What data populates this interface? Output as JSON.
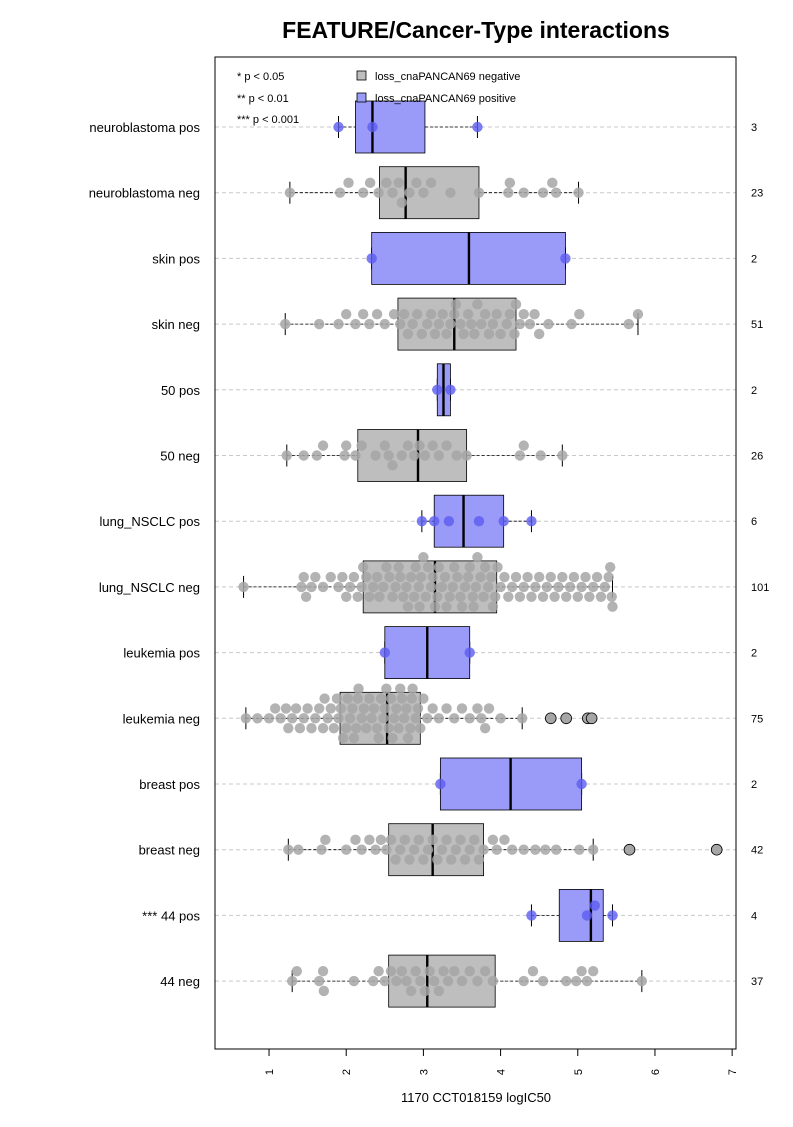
{
  "chart_data": {
    "type": "box",
    "title": "FEATURE/Cancer-Type interactions",
    "xlabel": "1170 CCT018159 logIC50",
    "xlim": [
      0.3,
      7.05
    ],
    "x_ticks": [
      1,
      2,
      3,
      4,
      5,
      6,
      7
    ],
    "x_tick_labels": [
      "1",
      "2",
      "3",
      "4",
      "5",
      "6",
      "7"
    ],
    "grid": "horizontal dashed",
    "legend": {
      "position": "top-left",
      "significance": [
        "* p < 0.05",
        "** p < 0.01",
        "*** p < 0.001"
      ],
      "entries": [
        {
          "label": "loss_cnaPANCAN69 negative",
          "color": "#bebebe"
        },
        {
          "label": "loss_cnaPANCAN69 positive",
          "color": "#9a9af8"
        }
      ]
    },
    "colors": {
      "negative_box": "#bebebe",
      "positive_box": "#9a9af8",
      "negative_point": "#a6a6a6",
      "positive_point": "#5b5bf0"
    },
    "groups": [
      {
        "label": "neuroblastoma pos",
        "n": "3",
        "status": "positive",
        "whisker_low": 1.9,
        "q1": 2.12,
        "median": 2.34,
        "q3": 3.02,
        "whisker_high": 3.7,
        "points": [
          1.9,
          2.34,
          3.7
        ],
        "outliers": []
      },
      {
        "label": "neuroblastoma neg",
        "n": "23",
        "status": "negative",
        "whisker_low": 1.27,
        "q1": 2.43,
        "median": 2.77,
        "q3": 3.72,
        "whisker_high": 5.01,
        "points": [
          1.27,
          1.92,
          2.03,
          2.22,
          2.31,
          2.42,
          2.52,
          2.6,
          2.68,
          2.72,
          2.82,
          2.91,
          3.0,
          3.1,
          3.35,
          3.72,
          4.1,
          4.12,
          4.3,
          4.55,
          4.67,
          4.72,
          5.01
        ],
        "outliers": []
      },
      {
        "label": "skin pos",
        "n": "2",
        "status": "positive",
        "whisker_low": 2.33,
        "q1": 2.33,
        "median": 3.59,
        "q3": 4.84,
        "whisker_high": 4.84,
        "points": [
          2.33,
          4.84
        ],
        "outliers": []
      },
      {
        "label": "skin neg",
        "n": "51",
        "status": "negative",
        "whisker_low": 1.21,
        "q1": 2.67,
        "median": 3.4,
        "q3": 4.2,
        "whisker_high": 5.78,
        "points": [
          1.21,
          1.65,
          1.9,
          2.0,
          2.12,
          2.22,
          2.3,
          2.4,
          2.5,
          2.62,
          2.7,
          2.75,
          2.8,
          2.86,
          2.92,
          2.98,
          3.05,
          3.1,
          3.15,
          3.2,
          3.25,
          3.3,
          3.35,
          3.4,
          3.42,
          3.48,
          3.52,
          3.58,
          3.62,
          3.66,
          3.7,
          3.75,
          3.8,
          3.85,
          3.9,
          3.95,
          4.0,
          4.08,
          4.12,
          4.18,
          4.2,
          4.25,
          4.3,
          4.38,
          4.44,
          4.5,
          4.62,
          4.92,
          5.02,
          5.66,
          5.78
        ],
        "outliers": []
      },
      {
        "label": "50 pos",
        "n": "2",
        "status": "positive",
        "whisker_low": 3.18,
        "q1": 3.18,
        "median": 3.26,
        "q3": 3.35,
        "whisker_high": 3.35,
        "points": [
          3.18,
          3.35
        ],
        "outliers": []
      },
      {
        "label": "50 neg",
        "n": "26",
        "status": "negative",
        "whisker_low": 1.23,
        "q1": 2.15,
        "median": 2.93,
        "q3": 3.56,
        "whisker_high": 4.8,
        "points": [
          1.23,
          1.45,
          1.62,
          1.7,
          1.98,
          2.0,
          2.12,
          2.2,
          2.38,
          2.5,
          2.55,
          2.6,
          2.72,
          2.8,
          2.88,
          2.95,
          3.02,
          3.12,
          3.2,
          3.3,
          3.43,
          3.56,
          4.25,
          4.3,
          4.52,
          4.8
        ],
        "outliers": []
      },
      {
        "label": "lung_NSCLC pos",
        "n": "6",
        "status": "positive",
        "whisker_low": 2.98,
        "q1": 3.14,
        "median": 3.52,
        "q3": 4.04,
        "whisker_high": 4.4,
        "points": [
          2.98,
          3.14,
          3.33,
          3.72,
          4.04,
          4.4
        ],
        "outliers": []
      },
      {
        "label": "lung_NSCLC neg",
        "n": "101",
        "status": "negative",
        "whisker_low": 0.67,
        "q1": 2.22,
        "median": 3.15,
        "q3": 3.95,
        "whisker_high": 5.45,
        "points": [
          0.67,
          1.42,
          1.45,
          1.48,
          1.6,
          1.7,
          1.8,
          1.9,
          1.95,
          2.0,
          2.05,
          2.1,
          2.15,
          2.2,
          2.22,
          2.26,
          2.3,
          2.35,
          2.4,
          2.43,
          2.48,
          2.52,
          2.56,
          2.6,
          2.64,
          2.68,
          2.7,
          2.74,
          2.78,
          2.8,
          2.84,
          2.88,
          2.9,
          2.94,
          2.97,
          3.0,
          3.03,
          3.06,
          3.1,
          3.12,
          3.15,
          3.18,
          3.2,
          3.24,
          3.28,
          3.3,
          3.34,
          3.38,
          3.4,
          3.44,
          3.48,
          3.5,
          3.54,
          3.58,
          3.6,
          3.64,
          3.68,
          3.7,
          3.74,
          3.78,
          3.8,
          3.84,
          3.88,
          3.9,
          3.93,
          3.96,
          4.0,
          4.05,
          4.1,
          4.15,
          4.2,
          4.25,
          4.3,
          4.35,
          4.4,
          4.45,
          4.5,
          4.55,
          4.6,
          4.65,
          4.7,
          4.75,
          4.8,
          4.85,
          4.9,
          4.95,
          5.0,
          5.05,
          5.1,
          5.15,
          5.2,
          5.25,
          5.3,
          5.35,
          5.4,
          5.42,
          5.44,
          5.45,
          1.55,
          2.95,
          3.65
        ],
        "outliers": []
      },
      {
        "label": "leukemia pos",
        "n": "2",
        "status": "positive",
        "whisker_low": 2.5,
        "q1": 2.5,
        "median": 3.05,
        "q3": 3.6,
        "whisker_high": 3.6,
        "points": [
          2.5,
          3.6
        ],
        "outliers": []
      },
      {
        "label": "leukemia neg",
        "n": "75",
        "status": "negative",
        "whisker_low": 0.7,
        "q1": 1.92,
        "median": 2.53,
        "q3": 2.96,
        "whisker_high": 4.28,
        "points": [
          0.7,
          0.85,
          1.0,
          1.08,
          1.15,
          1.22,
          1.3,
          1.35,
          1.4,
          1.45,
          1.5,
          1.55,
          1.6,
          1.65,
          1.7,
          1.72,
          1.76,
          1.8,
          1.84,
          1.88,
          1.9,
          1.93,
          1.96,
          2.0,
          2.02,
          2.05,
          2.08,
          2.1,
          2.13,
          2.16,
          2.2,
          2.23,
          2.26,
          2.3,
          2.33,
          2.36,
          2.4,
          2.42,
          2.45,
          2.48,
          2.5,
          2.52,
          2.55,
          2.58,
          2.6,
          2.62,
          2.65,
          2.68,
          2.7,
          2.72,
          2.75,
          2.78,
          2.8,
          2.83,
          2.86,
          2.9,
          2.93,
          2.96,
          3.0,
          3.05,
          3.12,
          3.2,
          3.3,
          3.4,
          3.5,
          3.6,
          3.7,
          3.75,
          3.8,
          3.85,
          4.0,
          4.28,
          1.25,
          2.15,
          2.85
        ],
        "outliers": [
          4.65,
          4.85,
          5.13,
          5.18
        ]
      },
      {
        "label": "breast pos",
        "n": "2",
        "status": "positive",
        "whisker_low": 3.22,
        "q1": 3.22,
        "median": 4.13,
        "q3": 5.05,
        "whisker_high": 5.05,
        "points": [
          3.22,
          5.05
        ],
        "outliers": []
      },
      {
        "label": "breast neg",
        "n": "42",
        "status": "negative",
        "whisker_low": 1.25,
        "q1": 2.55,
        "median": 3.12,
        "q3": 3.78,
        "whisker_high": 5.2,
        "points": [
          1.25,
          1.38,
          1.68,
          1.73,
          2.12,
          2.2,
          2.3,
          2.38,
          2.45,
          2.52,
          2.58,
          2.64,
          2.7,
          2.76,
          2.82,
          2.88,
          2.94,
          3.0,
          3.06,
          3.12,
          3.18,
          3.24,
          3.3,
          3.36,
          3.42,
          3.48,
          3.54,
          3.6,
          3.66,
          3.72,
          3.78,
          3.95,
          4.15,
          4.3,
          4.45,
          4.58,
          4.72,
          5.02,
          5.2,
          2.0,
          3.9,
          4.05
        ],
        "outliers": [
          5.67,
          6.8
        ]
      },
      {
        "label": "44 pos",
        "sig": "***",
        "n": "4",
        "status": "positive",
        "whisker_low": 4.4,
        "q1": 4.76,
        "median": 5.17,
        "q3": 5.33,
        "whisker_high": 5.45,
        "points": [
          4.4,
          5.12,
          5.22,
          5.45
        ],
        "outliers": []
      },
      {
        "label": "44 neg",
        "n": "37",
        "status": "negative",
        "whisker_low": 1.3,
        "q1": 2.55,
        "median": 3.05,
        "q3": 3.93,
        "whisker_high": 5.83,
        "points": [
          1.3,
          1.36,
          1.65,
          1.7,
          1.71,
          2.35,
          2.42,
          2.5,
          2.58,
          2.65,
          2.72,
          2.78,
          2.84,
          2.9,
          2.96,
          3.02,
          3.08,
          3.14,
          3.2,
          3.26,
          3.32,
          3.4,
          3.5,
          3.6,
          3.7,
          3.8,
          3.9,
          4.3,
          4.42,
          4.55,
          4.85,
          4.98,
          5.05,
          5.12,
          5.2,
          5.83,
          2.1
        ],
        "outliers": []
      }
    ]
  }
}
